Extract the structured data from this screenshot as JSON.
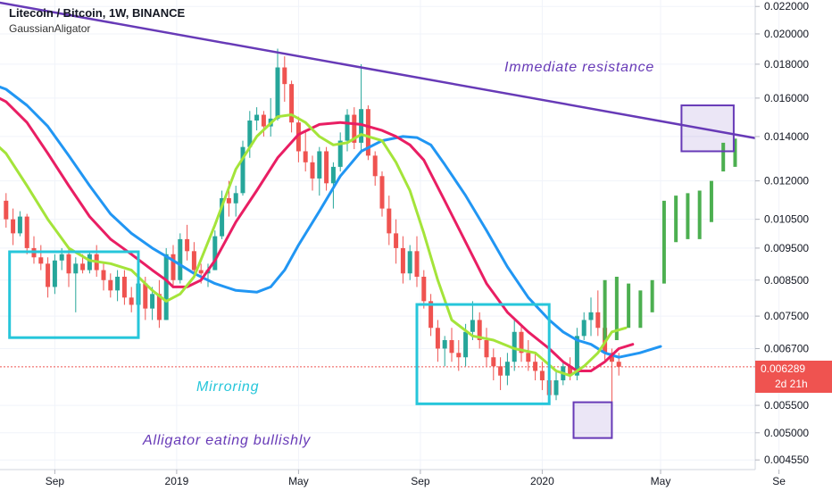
{
  "header": {
    "title": "Litecoin / Bitcoin, 1W, BINANCE",
    "indicator": "GaussianAligator"
  },
  "price_tag": {
    "value": "0.006289",
    "countdown": "2d 21h"
  },
  "colors": {
    "bull": "#26a69a",
    "bear": "#ef5350",
    "projection": "#4caf50",
    "blue_line": "#2196f3",
    "red_line": "#e91e63",
    "green_line": "#a4e43a",
    "trendline": "#673ab7",
    "box_teal": "#26c6da",
    "box_purple": "#673ab7",
    "price_line": "#ef5350"
  },
  "chart_data": {
    "type": "candlestick",
    "pair": "LTC/BTC",
    "timeframe": "1W",
    "y_scale": "log",
    "ylim": [
      0.0044,
      0.0225
    ],
    "y_ticks": [
      "0.022000",
      "0.020000",
      "0.018000",
      "0.016000",
      "0.014000",
      "0.012000",
      "0.010500",
      "0.009500",
      "0.008500",
      "0.007500",
      "0.006700",
      "0.005500",
      "0.005000",
      "0.004550"
    ],
    "x_tick_labels": [
      {
        "label": "Sep",
        "t": 7
      },
      {
        "label": "2019",
        "t": 24.5
      },
      {
        "label": "May",
        "t": 42
      },
      {
        "label": "Sep",
        "t": 59.5
      },
      {
        "label": "2020",
        "t": 77
      },
      {
        "label": "May",
        "t": 94
      },
      {
        "label": "Se",
        "t": 111
      }
    ],
    "candles": [
      [
        0.0112,
        0.0115,
        0.0102,
        0.0105
      ],
      [
        0.0105,
        0.0109,
        0.0096,
        0.01
      ],
      [
        0.01,
        0.0108,
        0.0099,
        0.0106
      ],
      [
        0.0106,
        0.0107,
        0.0093,
        0.0095
      ],
      [
        0.0095,
        0.0099,
        0.009,
        0.0092
      ],
      [
        0.0092,
        0.0096,
        0.0088,
        0.009
      ],
      [
        0.009,
        0.0092,
        0.008,
        0.0083
      ],
      [
        0.0083,
        0.0093,
        0.0081,
        0.0091
      ],
      [
        0.0091,
        0.0095,
        0.0088,
        0.0093
      ],
      [
        0.0093,
        0.0095,
        0.0083,
        0.0087
      ],
      [
        0.0087,
        0.0092,
        0.0076,
        0.009
      ],
      [
        0.009,
        0.0093,
        0.0087,
        0.0088
      ],
      [
        0.0088,
        0.0094,
        0.0087,
        0.0093
      ],
      [
        0.0093,
        0.0096,
        0.0086,
        0.0088
      ],
      [
        0.0088,
        0.009,
        0.0082,
        0.0085
      ],
      [
        0.0085,
        0.0087,
        0.008,
        0.0082
      ],
      [
        0.0082,
        0.0088,
        0.0079,
        0.0086
      ],
      [
        0.0086,
        0.0088,
        0.0078,
        0.008
      ],
      [
        0.008,
        0.0083,
        0.0076,
        0.0078
      ],
      [
        0.0078,
        0.0086,
        0.0076,
        0.0084
      ],
      [
        0.0084,
        0.0086,
        0.0074,
        0.0077
      ],
      [
        0.0077,
        0.0083,
        0.0074,
        0.0081
      ],
      [
        0.0081,
        0.0085,
        0.0072,
        0.0074
      ],
      [
        0.0074,
        0.0095,
        0.0074,
        0.0093
      ],
      [
        0.0093,
        0.0096,
        0.0083,
        0.0085
      ],
      [
        0.0085,
        0.01,
        0.0084,
        0.0098
      ],
      [
        0.0098,
        0.0103,
        0.0091,
        0.0094
      ],
      [
        0.0094,
        0.0097,
        0.0086,
        0.0088
      ],
      [
        0.0088,
        0.009,
        0.0084,
        0.0087
      ],
      [
        0.0087,
        0.009,
        0.0083,
        0.0088
      ],
      [
        0.0088,
        0.0101,
        0.0088,
        0.0099
      ],
      [
        0.0099,
        0.0116,
        0.0098,
        0.0113
      ],
      [
        0.0113,
        0.012,
        0.0106,
        0.0111
      ],
      [
        0.0111,
        0.0118,
        0.0106,
        0.0115
      ],
      [
        0.0115,
        0.0138,
        0.0114,
        0.0135
      ],
      [
        0.0135,
        0.0153,
        0.013,
        0.0148
      ],
      [
        0.0148,
        0.0155,
        0.0143,
        0.0151
      ],
      [
        0.0151,
        0.0153,
        0.014,
        0.0145
      ],
      [
        0.0145,
        0.016,
        0.014,
        0.0149
      ],
      [
        0.0149,
        0.019,
        0.0148,
        0.0178
      ],
      [
        0.0178,
        0.0185,
        0.0158,
        0.0168
      ],
      [
        0.0168,
        0.017,
        0.0142,
        0.0147
      ],
      [
        0.0147,
        0.015,
        0.0128,
        0.0133
      ],
      [
        0.0133,
        0.0143,
        0.0124,
        0.0128
      ],
      [
        0.0128,
        0.0131,
        0.0116,
        0.0121
      ],
      [
        0.0121,
        0.0135,
        0.0114,
        0.0133
      ],
      [
        0.0133,
        0.0135,
        0.0116,
        0.0119
      ],
      [
        0.0119,
        0.0128,
        0.0109,
        0.0126
      ],
      [
        0.0126,
        0.0142,
        0.0124,
        0.0138
      ],
      [
        0.0138,
        0.0154,
        0.0133,
        0.0151
      ],
      [
        0.0151,
        0.0155,
        0.0134,
        0.0137
      ],
      [
        0.0137,
        0.018,
        0.0132,
        0.0154
      ],
      [
        0.0154,
        0.0156,
        0.0129,
        0.0131
      ],
      [
        0.0131,
        0.0133,
        0.0118,
        0.0122
      ],
      [
        0.0122,
        0.0124,
        0.0106,
        0.0109
      ],
      [
        0.0109,
        0.0114,
        0.0096,
        0.01
      ],
      [
        0.01,
        0.0105,
        0.009,
        0.0095
      ],
      [
        0.0095,
        0.0099,
        0.0084,
        0.0087
      ],
      [
        0.0087,
        0.0096,
        0.0085,
        0.0094
      ],
      [
        0.0094,
        0.0099,
        0.0083,
        0.0086
      ],
      [
        0.0086,
        0.0088,
        0.0077,
        0.0079
      ],
      [
        0.0079,
        0.0081,
        0.007,
        0.0072
      ],
      [
        0.0072,
        0.0074,
        0.0064,
        0.0067
      ],
      [
        0.0067,
        0.007,
        0.0063,
        0.0069
      ],
      [
        0.0069,
        0.0072,
        0.0064,
        0.0066
      ],
      [
        0.0066,
        0.0069,
        0.0062,
        0.0065
      ],
      [
        0.0065,
        0.0073,
        0.0063,
        0.0071
      ],
      [
        0.0071,
        0.0079,
        0.0069,
        0.0074
      ],
      [
        0.0074,
        0.0076,
        0.0067,
        0.0069
      ],
      [
        0.0069,
        0.0072,
        0.0063,
        0.0065
      ],
      [
        0.0065,
        0.0067,
        0.006,
        0.0063
      ],
      [
        0.0063,
        0.0065,
        0.0058,
        0.0061
      ],
      [
        0.0061,
        0.0066,
        0.0059,
        0.0064
      ],
      [
        0.0064,
        0.0074,
        0.0062,
        0.0071
      ],
      [
        0.0071,
        0.0073,
        0.0064,
        0.0066
      ],
      [
        0.0066,
        0.0069,
        0.0062,
        0.0064
      ],
      [
        0.0064,
        0.0066,
        0.006,
        0.0062
      ],
      [
        0.0062,
        0.0064,
        0.0058,
        0.006
      ],
      [
        0.006,
        0.0062,
        0.00555,
        0.0057
      ],
      [
        0.0057,
        0.0062,
        0.0056,
        0.006
      ],
      [
        0.006,
        0.0064,
        0.0059,
        0.0063
      ],
      [
        0.0063,
        0.0065,
        0.006,
        0.0061
      ],
      [
        0.0061,
        0.0072,
        0.006,
        0.007
      ],
      [
        0.007,
        0.0076,
        0.0069,
        0.0074
      ],
      [
        0.0074,
        0.008,
        0.007,
        0.0076
      ],
      [
        0.0076,
        0.0082,
        0.007,
        0.0072
      ],
      [
        0.0072,
        0.0074,
        0.0064,
        0.0066
      ],
      [
        0.0066,
        0.0067,
        0.0052,
        0.0064
      ],
      [
        0.0064,
        0.0066,
        0.0061,
        0.00629
      ]
    ],
    "projection_bars": [
      [
        0.0069,
        0.0085
      ],
      [
        0.0069,
        0.0086
      ],
      [
        0.0072,
        0.0084
      ],
      [
        0.0072,
        0.0082
      ],
      [
        0.0076,
        0.0085
      ],
      [
        0.0084,
        0.0112
      ],
      [
        0.0097,
        0.0114
      ],
      [
        0.0098,
        0.0115
      ],
      [
        0.0098,
        0.0116
      ],
      [
        0.0104,
        0.012
      ],
      [
        0.0124,
        0.0137
      ],
      [
        0.0126,
        0.0139
      ]
    ],
    "projection_start_t": 86,
    "series": [
      {
        "role": "blue",
        "points": [
          [
            -2,
            0.0168
          ],
          [
            0,
            0.0165
          ],
          [
            3,
            0.0156
          ],
          [
            6,
            0.0145
          ],
          [
            9,
            0.0131
          ],
          [
            12,
            0.0118
          ],
          [
            15,
            0.0107
          ],
          [
            18,
            0.01
          ],
          [
            21,
            0.0095
          ],
          [
            24,
            0.0091
          ],
          [
            27,
            0.0087
          ],
          [
            30,
            0.0084
          ],
          [
            33,
            0.0082
          ],
          [
            36,
            0.00815
          ],
          [
            38,
            0.0083
          ],
          [
            40,
            0.0088
          ],
          [
            42,
            0.0096
          ],
          [
            45,
            0.0108
          ],
          [
            48,
            0.0122
          ],
          [
            51,
            0.0133
          ],
          [
            54,
            0.0138
          ],
          [
            57,
            0.014
          ],
          [
            59,
            0.01395
          ],
          [
            61,
            0.0136
          ],
          [
            63,
            0.0127
          ],
          [
            66,
            0.0114
          ],
          [
            69,
            0.0101
          ],
          [
            72,
            0.0089
          ],
          [
            75,
            0.008
          ],
          [
            78,
            0.0074
          ],
          [
            80,
            0.0071
          ],
          [
            82,
            0.0069
          ],
          [
            84,
            0.0068
          ],
          [
            86,
            0.0066
          ],
          [
            88,
            0.0065
          ],
          [
            91,
            0.0066
          ],
          [
            94,
            0.00675
          ]
        ]
      },
      {
        "role": "red",
        "points": [
          [
            -2,
            0.0162
          ],
          [
            0,
            0.0158
          ],
          [
            3,
            0.0147
          ],
          [
            6,
            0.0132
          ],
          [
            9,
            0.0118
          ],
          [
            12,
            0.0106
          ],
          [
            15,
            0.0098
          ],
          [
            18,
            0.0093
          ],
          [
            21,
            0.0088
          ],
          [
            23,
            0.0085
          ],
          [
            24,
            0.0083
          ],
          [
            26,
            0.0083
          ],
          [
            28,
            0.0085
          ],
          [
            30,
            0.0091
          ],
          [
            33,
            0.0104
          ],
          [
            36,
            0.0116
          ],
          [
            39,
            0.013
          ],
          [
            42,
            0.0141
          ],
          [
            45,
            0.0146
          ],
          [
            48,
            0.0147
          ],
          [
            51,
            0.0146
          ],
          [
            54,
            0.0143
          ],
          [
            56,
            0.014
          ],
          [
            58,
            0.0136
          ],
          [
            60,
            0.0129
          ],
          [
            63,
            0.0112
          ],
          [
            66,
            0.0097
          ],
          [
            69,
            0.0084
          ],
          [
            72,
            0.0076
          ],
          [
            75,
            0.0071
          ],
          [
            78,
            0.0067
          ],
          [
            80,
            0.0064
          ],
          [
            82,
            0.0062
          ],
          [
            84,
            0.0062
          ],
          [
            86,
            0.0064
          ],
          [
            88,
            0.0067
          ],
          [
            90,
            0.0068
          ]
        ]
      },
      {
        "role": "green",
        "points": [
          [
            -2,
            0.0138
          ],
          [
            0,
            0.0132
          ],
          [
            3,
            0.0118
          ],
          [
            6,
            0.0105
          ],
          [
            9,
            0.0095
          ],
          [
            12,
            0.0091
          ],
          [
            15,
            0.009
          ],
          [
            18,
            0.0088
          ],
          [
            21,
            0.0082
          ],
          [
            23,
            0.0079
          ],
          [
            25,
            0.0081
          ],
          [
            27,
            0.0086
          ],
          [
            30,
            0.0103
          ],
          [
            33,
            0.0125
          ],
          [
            36,
            0.014
          ],
          [
            39,
            0.015
          ],
          [
            41,
            0.0151
          ],
          [
            43,
            0.0147
          ],
          [
            45,
            0.014
          ],
          [
            47,
            0.0136
          ],
          [
            49,
            0.0137
          ],
          [
            51,
            0.0141
          ],
          [
            54,
            0.0138
          ],
          [
            56,
            0.0128
          ],
          [
            58,
            0.0116
          ],
          [
            60,
            0.01
          ],
          [
            62,
            0.0085
          ],
          [
            64,
            0.0074
          ],
          [
            67,
            0.007
          ],
          [
            70,
            0.0069
          ],
          [
            73,
            0.0067
          ],
          [
            76,
            0.0066
          ],
          [
            79,
            0.0062
          ],
          [
            81,
            0.0061
          ],
          [
            83,
            0.0063
          ],
          [
            85,
            0.0066
          ],
          [
            87,
            0.0071
          ],
          [
            89,
            0.0072
          ]
        ]
      }
    ],
    "trendline": [
      [
        -3,
        0.0225
      ],
      [
        113,
        0.0136
      ]
    ],
    "annotations": [
      {
        "text": "Immediate resistance",
        "color": "#673ab7"
      },
      {
        "text": "Mirroring",
        "color": "#26c6da"
      },
      {
        "text": "Alligator eating bullishly",
        "color": "#673ab7"
      }
    ],
    "boxes": [
      {
        "role": "mirror-box-left",
        "t": [
          0.5,
          19
        ],
        "price": [
          0.00696,
          0.00938
        ],
        "style": "teal"
      },
      {
        "role": "mirror-box-right",
        "t": [
          59,
          78
        ],
        "price": [
          0.00553,
          0.00781
        ],
        "style": "teal"
      },
      {
        "role": "resistance-box",
        "t": [
          97,
          104.5
        ],
        "price": [
          0.0133,
          0.0156
        ],
        "style": "purple"
      },
      {
        "role": "wick-box",
        "t": [
          81.5,
          87
        ],
        "price": [
          0.00491,
          0.00556
        ],
        "style": "purple"
      }
    ]
  }
}
